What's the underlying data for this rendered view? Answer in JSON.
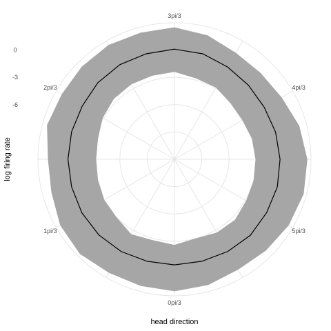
{
  "chart_data": {
    "type": "line",
    "coordinate_system": "polar",
    "xlabel": "head direction",
    "ylabel": "log firing rate",
    "angle_ticks": [
      "0pi/3",
      "1pi/3",
      "2pi/3",
      "3pi/3",
      "4pi/3",
      "5pi/3"
    ],
    "radial_ticks": [
      "0",
      "-3",
      "-6"
    ],
    "radial_tick_values": [
      0,
      -3,
      -6
    ],
    "rlim": [
      -12,
      3
    ],
    "theta_zero": "bottom",
    "theta_direction": "clockwise",
    "grid": true,
    "colors": {
      "band": "#a6a6a6",
      "line": "#000000",
      "grid": "#e6e6e6"
    },
    "series": [
      {
        "kind": "line",
        "theta": [
          0,
          0.2618,
          0.5236,
          0.7854,
          1.0472,
          1.309,
          1.5708,
          1.8326,
          2.0944,
          2.3562,
          2.618,
          2.8798,
          3.1416,
          3.4034,
          3.6652,
          3.927,
          4.1888,
          4.4506,
          4.7124,
          4.9742,
          5.236,
          5.4978,
          5.7596,
          6.0214
        ],
        "values": [
          -0.4,
          -0.4,
          -0.3,
          -0.25,
          -0.25,
          -0.3,
          -0.3,
          -0.3,
          -0.3,
          -0.1,
          0.0,
          0.0,
          0.1,
          0.0,
          -0.3,
          -0.5,
          -0.6,
          -0.5,
          -0.4,
          -0.3,
          -0.3,
          -0.2,
          -0.3,
          -0.4
        ]
      },
      {
        "kind": "band",
        "theta": [
          0,
          0.2618,
          0.5236,
          0.7854,
          1.0472,
          1.309,
          1.5708,
          1.8326,
          2.0944,
          2.3562,
          2.618,
          2.8798,
          3.1416,
          3.4034,
          3.6652,
          3.927,
          4.1888,
          4.4506,
          4.7124,
          4.9742,
          5.236,
          5.4978,
          5.7596,
          6.0214
        ],
        "upper": [
          2.5,
          2.4,
          2.4,
          2.7,
          2.5,
          2.0,
          1.9,
          2.5,
          2.3,
          2.4,
          2.5,
          2.4,
          2.5,
          2.1,
          1.5,
          1.4,
          1.6,
          2.2,
          2.6,
          2.7,
          2.5,
          2.2,
          2.0,
          2.3
        ],
        "lower": [
          -2.6,
          -2.8,
          -2.5,
          -3.0,
          -3.1,
          -3.3,
          -3.4,
          -3.3,
          -2.9,
          -2.6,
          -2.5,
          -2.5,
          -2.4,
          -2.8,
          -2.9,
          -3.3,
          -3.4,
          -3.2,
          -3.1,
          -3.0,
          -2.9,
          -2.6,
          -2.7,
          -3.0
        ]
      }
    ]
  }
}
